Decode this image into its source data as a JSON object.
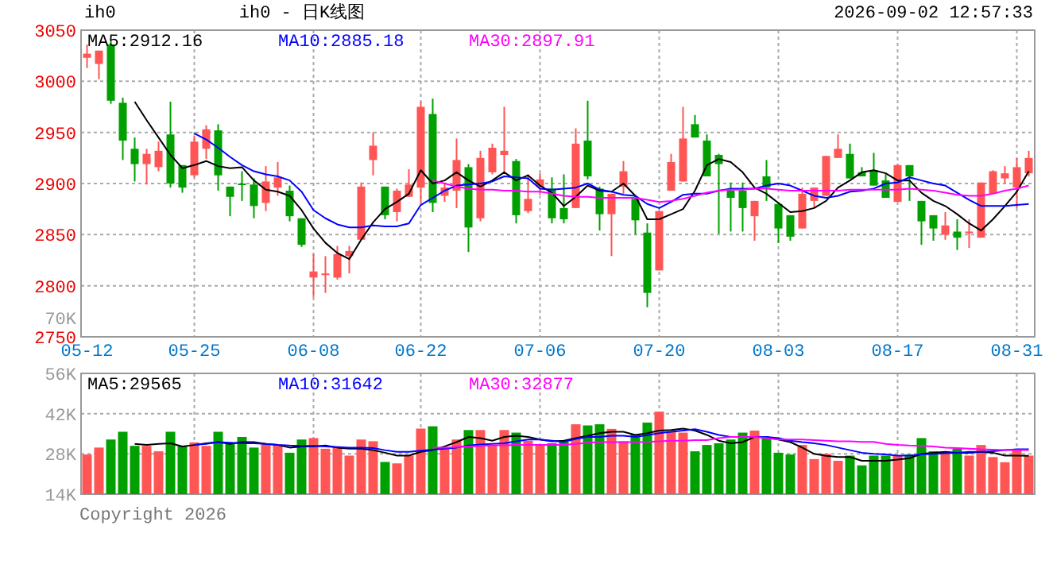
{
  "chart_data": [
    {
      "type": "candlestick",
      "title": "ih0 - 日K线图",
      "annotations": [
        "ih0",
        "2026-09-02 12:57:33"
      ],
      "categories": [
        "05-12",
        null,
        null,
        null,
        null,
        null,
        null,
        null,
        null,
        "05-25",
        null,
        null,
        null,
        null,
        null,
        null,
        null,
        null,
        null,
        "06-08",
        null,
        null,
        null,
        null,
        null,
        null,
        null,
        null,
        "06-22",
        null,
        null,
        null,
        null,
        null,
        null,
        null,
        null,
        null,
        "07-06",
        null,
        null,
        null,
        null,
        null,
        null,
        null,
        null,
        null,
        "07-20",
        null,
        null,
        null,
        null,
        null,
        null,
        null,
        null,
        null,
        "08-03",
        null,
        null,
        null,
        null,
        null,
        null,
        null,
        null,
        null,
        "08-17",
        null,
        null,
        null,
        null,
        null,
        null,
        null,
        null,
        null,
        "08-31",
        null
      ],
      "ohlc": [
        [
          3023,
          3036,
          3013,
          3027
        ],
        [
          3017,
          3030,
          3002,
          3030
        ],
        [
          3036,
          3040,
          2978,
          2981
        ],
        [
          2979,
          2984,
          2923,
          2942
        ],
        [
          2934,
          2945,
          2902,
          2919
        ],
        [
          2919,
          2934,
          2899,
          2929
        ],
        [
          2916,
          2941,
          2912,
          2932
        ],
        [
          2948,
          2980,
          2896,
          2900
        ],
        [
          2918,
          2918,
          2891,
          2896
        ],
        [
          2908,
          2947,
          2906,
          2941
        ],
        [
          2934,
          2957,
          2924,
          2953
        ],
        [
          2952,
          2958,
          2893,
          2908
        ],
        [
          2897,
          2897,
          2868,
          2887
        ],
        [
          2900,
          2912,
          2883,
          2899
        ],
        [
          2899,
          2905,
          2866,
          2878
        ],
        [
          2881,
          2917,
          2873,
          2902
        ],
        [
          2896,
          2921,
          2888,
          2906
        ],
        [
          2893,
          2898,
          2863,
          2868
        ],
        [
          2866,
          2866,
          2838,
          2840
        ],
        [
          2808,
          2831,
          2789,
          2814
        ],
        [
          2811,
          2829,
          2793,
          2812
        ],
        [
          2808,
          2839,
          2806,
          2831
        ],
        [
          2829,
          2839,
          2812,
          2834
        ],
        [
          2845,
          2901,
          2845,
          2897
        ],
        [
          2923,
          2950,
          2908,
          2937
        ],
        [
          2897,
          2897,
          2865,
          2869
        ],
        [
          2872,
          2895,
          2863,
          2893
        ],
        [
          2887,
          2914,
          2887,
          2899
        ],
        [
          2896,
          2980,
          2881,
          2975
        ],
        [
          2968,
          2983,
          2872,
          2881
        ],
        [
          2888,
          2901,
          2882,
          2896
        ],
        [
          2893,
          2944,
          2876,
          2923
        ],
        [
          2916,
          2919,
          2833,
          2857
        ],
        [
          2866,
          2932,
          2863,
          2925
        ],
        [
          2911,
          2939,
          2909,
          2935
        ],
        [
          2928,
          2975,
          2911,
          2932
        ],
        [
          2922,
          2924,
          2861,
          2869
        ],
        [
          2873,
          2909,
          2871,
          2885
        ],
        [
          2897,
          2910,
          2889,
          2904
        ],
        [
          2895,
          2906,
          2861,
          2866
        ],
        [
          2876,
          2909,
          2861,
          2865
        ],
        [
          2876,
          2954,
          2876,
          2939
        ],
        [
          2942,
          2981,
          2904,
          2907
        ],
        [
          2895,
          2897,
          2854,
          2870
        ],
        [
          2870,
          2890,
          2829,
          2890
        ],
        [
          2897,
          2922,
          2890,
          2912
        ],
        [
          2885,
          2888,
          2850,
          2864
        ],
        [
          2852,
          2861,
          2779,
          2793
        ],
        [
          2815,
          2873,
          2815,
          2873
        ],
        [
          2893,
          2929,
          2893,
          2921
        ],
        [
          2902,
          2975,
          2902,
          2944
        ],
        [
          2958,
          2967,
          2945,
          2945
        ],
        [
          2942,
          2948,
          2907,
          2907
        ],
        [
          2928,
          2929,
          2851,
          2919
        ],
        [
          2893,
          2901,
          2853,
          2886
        ],
        [
          2893,
          2901,
          2853,
          2876
        ],
        [
          2868,
          2883,
          2844,
          2883
        ],
        [
          2907,
          2923,
          2883,
          2896
        ],
        [
          2880,
          2880,
          2842,
          2856
        ],
        [
          2869,
          2869,
          2844,
          2848
        ],
        [
          2856,
          2896,
          2856,
          2890
        ],
        [
          2883,
          2896,
          2876,
          2896
        ],
        [
          2888,
          2927,
          2888,
          2927
        ],
        [
          2925,
          2948,
          2925,
          2934
        ],
        [
          2929,
          2939,
          2905,
          2905
        ],
        [
          2911,
          2916,
          2907,
          2907
        ],
        [
          2913,
          2930,
          2898,
          2898
        ],
        [
          2903,
          2909,
          2886,
          2886
        ],
        [
          2882,
          2919,
          2882,
          2918
        ],
        [
          2918,
          2918,
          2883,
          2907
        ],
        [
          2883,
          2883,
          2840,
          2863
        ],
        [
          2869,
          2869,
          2844,
          2856
        ],
        [
          2850,
          2872,
          2845,
          2859
        ],
        [
          2853,
          2865,
          2835,
          2847
        ],
        [
          2852,
          2865,
          2837,
          2853
        ],
        [
          2847,
          2901,
          2847,
          2901
        ],
        [
          2890,
          2913,
          2890,
          2912
        ],
        [
          2905,
          2917,
          2900,
          2910
        ],
        [
          2896,
          2925,
          2876,
          2916
        ],
        [
          2910,
          2932,
          2907,
          2925
        ]
      ],
      "colors": [
        "#ff5555",
        "#ff5555",
        "#00a000",
        "#00a000",
        "#00a000",
        "#ff5555",
        "#ff5555",
        "#00a000",
        "#00a000",
        "#ff5555",
        "#ff5555",
        "#00a000",
        "#00a000",
        "#00a000",
        "#00a000",
        "#ff5555",
        "#ff5555",
        "#00a000",
        "#00a000",
        "#ff5555",
        "#ff5555",
        "#ff5555",
        "#ff5555",
        "#ff5555",
        "#ff5555",
        "#00a000",
        "#ff5555",
        "#ff5555",
        "#ff5555",
        "#00a000",
        "#ff5555",
        "#ff5555",
        "#00a000",
        "#ff5555",
        "#ff5555",
        "#ff5555",
        "#00a000",
        "#ff5555",
        "#ff5555",
        "#00a000",
        "#00a000",
        "#ff5555",
        "#00a000",
        "#00a000",
        "#ff5555",
        "#ff5555",
        "#00a000",
        "#00a000",
        "#ff5555",
        "#ff5555",
        "#ff5555",
        "#00a000",
        "#00a000",
        "#00a000",
        "#00a000",
        "#00a000",
        "#ff5555",
        "#00a000",
        "#00a000",
        "#00a000",
        "#ff5555",
        "#ff5555",
        "#ff5555",
        "#ff5555",
        "#00a000",
        "#00a000",
        "#00a000",
        "#00a000",
        "#ff5555",
        "#00a000",
        "#00a000",
        "#00a000",
        "#ff5555",
        "#00a000",
        "#ff5555",
        "#ff5555",
        "#ff5555",
        "#ff5555",
        "#ff5555",
        "#ff5555"
      ],
      "series": [
        {
          "type": "line",
          "name": "MA5:2912.16",
          "color": "#000000",
          "values": [
            null,
            null,
            null,
            null,
            2980,
            2962,
            2945,
            2928,
            2915,
            2918,
            2922,
            2917,
            2915,
            2916,
            2903,
            2894,
            2892,
            2888,
            2874,
            2856,
            2842,
            2832,
            2826,
            2845,
            2862,
            2875,
            2882,
            2890,
            2913,
            2900,
            2903,
            2911,
            2903,
            2897,
            2903,
            2911,
            2903,
            2908,
            2898,
            2891,
            2878,
            2887,
            2898,
            2893,
            2892,
            2900,
            2888,
            2865,
            2865,
            2870,
            2875,
            2893,
            2918,
            2924,
            2921,
            2911,
            2896,
            2890,
            2881,
            2872,
            2873,
            2876,
            2883,
            2896,
            2903,
            2911,
            2913,
            2910,
            2903,
            2903,
            2891,
            2883,
            2878,
            2870,
            2861,
            2854,
            2865,
            2878,
            2892,
            2912
          ]
        },
        {
          "type": "line",
          "name": "MA10:2885.18",
          "color": "#0000ff",
          "values": [
            null,
            null,
            null,
            null,
            null,
            null,
            null,
            null,
            null,
            2949,
            2943,
            2935,
            2926,
            2918,
            2912,
            2909,
            2907,
            2903,
            2892,
            2874,
            2866,
            2860,
            2857,
            2857,
            2859,
            2858,
            2858,
            2861,
            2879,
            2886,
            2893,
            2898,
            2899,
            2900,
            2902,
            2907,
            2906,
            2905,
            2895,
            2894,
            2895,
            2896,
            2900,
            2894,
            2892,
            2889,
            2888,
            2880,
            2876,
            2882,
            2889,
            2890,
            2890,
            2893,
            2895,
            2895,
            2895,
            2898,
            2900,
            2898,
            2893,
            2888,
            2886,
            2888,
            2892,
            2893,
            2895,
            2900,
            2901,
            2906,
            2903,
            2900,
            2898,
            2891,
            2884,
            2878,
            2878,
            2878,
            2879,
            2880
          ]
        },
        {
          "type": "line",
          "name": "MA30:2897.91",
          "color": "#ff00ff",
          "values": [
            null,
            null,
            null,
            null,
            null,
            null,
            null,
            null,
            null,
            null,
            null,
            null,
            null,
            null,
            null,
            null,
            null,
            null,
            null,
            null,
            null,
            null,
            null,
            null,
            null,
            null,
            null,
            null,
            null,
            2903,
            2900,
            2897,
            2895,
            2894,
            2894,
            2893,
            2893,
            2892,
            2892,
            2890,
            2888,
            2887,
            2887,
            2886,
            2886,
            2886,
            2886,
            2884,
            2882,
            2883,
            2885,
            2888,
            2891,
            2893,
            2894,
            2894,
            2895,
            2895,
            2894,
            2893,
            2893,
            2893,
            2893,
            2893,
            2894,
            2894,
            2894,
            2894,
            2894,
            2895,
            2894,
            2893,
            2891,
            2889,
            2888,
            2888,
            2890,
            2893,
            2895,
            2898
          ]
        }
      ],
      "ylim": [
        2750,
        3050
      ],
      "yticks": [
        2750,
        2800,
        2850,
        2900,
        2950,
        3000,
        3050
      ],
      "grid": true,
      "legend": "top left"
    },
    {
      "type": "bar",
      "annotations": [
        "70K",
        "Copyright 2026"
      ],
      "tick_labels": "y",
      "categories": [
        null,
        null,
        null,
        null,
        null,
        null,
        null,
        null,
        null,
        null,
        null,
        null,
        null,
        null,
        null,
        null,
        null,
        null,
        null,
        null,
        null,
        null,
        null,
        null,
        null,
        null,
        null,
        null,
        null,
        null,
        null,
        null,
        null,
        null,
        null,
        null,
        null,
        null,
        null,
        null,
        null,
        null,
        null,
        null,
        null,
        null,
        null,
        null,
        null,
        null,
        null,
        null,
        null,
        null,
        null,
        null,
        null,
        null,
        null,
        null,
        null,
        null,
        null,
        null,
        null,
        null,
        null,
        null,
        null,
        null,
        null,
        null,
        null,
        null,
        null,
        null,
        null,
        null,
        null,
        null
      ],
      "series": [
        {
          "type": "bar",
          "values": [
            27800,
            30200,
            33000,
            35700,
            30800,
            30800,
            28900,
            35700,
            30800,
            32000,
            30800,
            35700,
            31700,
            33900,
            30200,
            31700,
            31100,
            28400,
            33000,
            33500,
            29800,
            30600,
            27400,
            33000,
            32400,
            25200,
            24700,
            27400,
            36800,
            37600,
            30200,
            33000,
            36300,
            36300,
            31100,
            36300,
            35400,
            32600,
            31100,
            31700,
            32400,
            38300,
            37900,
            38300,
            36700,
            32400,
            34800,
            38900,
            42700,
            35700,
            35400,
            28900,
            31100,
            31700,
            33000,
            35400,
            36100,
            33500,
            28400,
            27800,
            31100,
            26200,
            28000,
            25600,
            27400,
            24000,
            27400,
            27400,
            27400,
            27800,
            33500,
            28900,
            28900,
            29800,
            27400,
            31100,
            26900,
            25100,
            29300,
            27400
          ],
          "colors": [
            "#ff5555",
            "#ff5555",
            "#00a000",
            "#00a000",
            "#00a000",
            "#ff5555",
            "#ff5555",
            "#00a000",
            "#00a000",
            "#ff5555",
            "#ff5555",
            "#00a000",
            "#00a000",
            "#00a000",
            "#00a000",
            "#ff5555",
            "#ff5555",
            "#00a000",
            "#00a000",
            "#ff5555",
            "#ff5555",
            "#ff5555",
            "#ff5555",
            "#ff5555",
            "#ff5555",
            "#00a000",
            "#ff5555",
            "#ff5555",
            "#ff5555",
            "#00a000",
            "#ff5555",
            "#ff5555",
            "#00a000",
            "#ff5555",
            "#ff5555",
            "#ff5555",
            "#00a000",
            "#ff5555",
            "#ff5555",
            "#00a000",
            "#00a000",
            "#ff5555",
            "#00a000",
            "#00a000",
            "#ff5555",
            "#ff5555",
            "#00a000",
            "#00a000",
            "#ff5555",
            "#ff5555",
            "#ff5555",
            "#00a000",
            "#00a000",
            "#00a000",
            "#00a000",
            "#00a000",
            "#ff5555",
            "#00a000",
            "#00a000",
            "#00a000",
            "#ff5555",
            "#ff5555",
            "#ff5555",
            "#ff5555",
            "#00a000",
            "#00a000",
            "#00a000",
            "#00a000",
            "#ff5555",
            "#00a000",
            "#00a000",
            "#00a000",
            "#ff5555",
            "#00a000",
            "#ff5555",
            "#ff5555",
            "#ff5555",
            "#ff5555",
            "#ff5555",
            "#ff5555"
          ]
        },
        {
          "type": "line",
          "name": "MA5:29565",
          "color": "#000000",
          "values": [
            null,
            null,
            null,
            null,
            31500,
            31100,
            31500,
            31700,
            30600,
            31100,
            31700,
            32100,
            31500,
            32100,
            32100,
            31500,
            31100,
            30200,
            30600,
            30600,
            30900,
            30200,
            29800,
            29800,
            29300,
            28400,
            27400,
            27400,
            28700,
            29300,
            30600,
            32100,
            33900,
            33500,
            32600,
            33900,
            34300,
            33900,
            33000,
            32400,
            32600,
            33500,
            34300,
            35200,
            35700,
            35700,
            34600,
            35200,
            36100,
            36300,
            36800,
            36100,
            34600,
            32600,
            31700,
            32100,
            33900,
            33900,
            33000,
            32100,
            30200,
            28000,
            27300,
            26900,
            26900,
            25600,
            25600,
            25600,
            26000,
            26500,
            28000,
            28400,
            28700,
            28400,
            28400,
            28700,
            28400,
            27400,
            27400,
            27300
          ]
        },
        {
          "type": "line",
          "name": "MA10:31642",
          "color": "#0000ff",
          "values": [
            null,
            null,
            null,
            null,
            null,
            null,
            null,
            null,
            null,
            31100,
            31500,
            32100,
            31900,
            31700,
            31700,
            31500,
            31100,
            30900,
            30800,
            30800,
            30600,
            30400,
            30200,
            30200,
            30000,
            29300,
            28700,
            28700,
            29100,
            29500,
            29800,
            30200,
            30900,
            31300,
            31500,
            31700,
            32400,
            33000,
            33000,
            32600,
            32200,
            33200,
            33900,
            33900,
            34300,
            34300,
            33900,
            34500,
            35200,
            35700,
            36100,
            36600,
            35700,
            34600,
            33900,
            33900,
            33900,
            33900,
            33500,
            32600,
            32100,
            31700,
            31100,
            30200,
            29300,
            28400,
            28000,
            27800,
            27400,
            27400,
            27800,
            28000,
            28200,
            28400,
            28700,
            28700,
            28900,
            29300,
            29600,
            29600
          ]
        },
        {
          "type": "line",
          "name": "MA30:32877",
          "color": "#ff00ff",
          "values": [
            null,
            null,
            null,
            null,
            null,
            null,
            null,
            null,
            null,
            null,
            null,
            null,
            null,
            null,
            null,
            null,
            null,
            null,
            null,
            null,
            null,
            null,
            null,
            null,
            null,
            null,
            null,
            null,
            null,
            30200,
            30200,
            30400,
            30600,
            30800,
            31000,
            31000,
            31100,
            31100,
            31100,
            31100,
            31100,
            31500,
            31900,
            32100,
            32100,
            32100,
            32100,
            32200,
            32400,
            32600,
            32600,
            32800,
            32800,
            33500,
            33900,
            33900,
            33900,
            33500,
            33000,
            33000,
            33000,
            32800,
            32600,
            32400,
            32400,
            32200,
            32200,
            31500,
            31100,
            30900,
            30800,
            30600,
            30200,
            30000,
            29800,
            29600,
            29500,
            29300,
            29300,
            29300
          ]
        }
      ],
      "ylim": [
        14000,
        56000
      ],
      "yticks": [
        {
          "value": 14000,
          "label": "14K"
        },
        {
          "value": 28000,
          "label": "28K"
        },
        {
          "value": 42000,
          "label": "42K"
        },
        {
          "value": 56000,
          "label": "56K"
        }
      ],
      "grid": true,
      "legend": "top left"
    }
  ]
}
